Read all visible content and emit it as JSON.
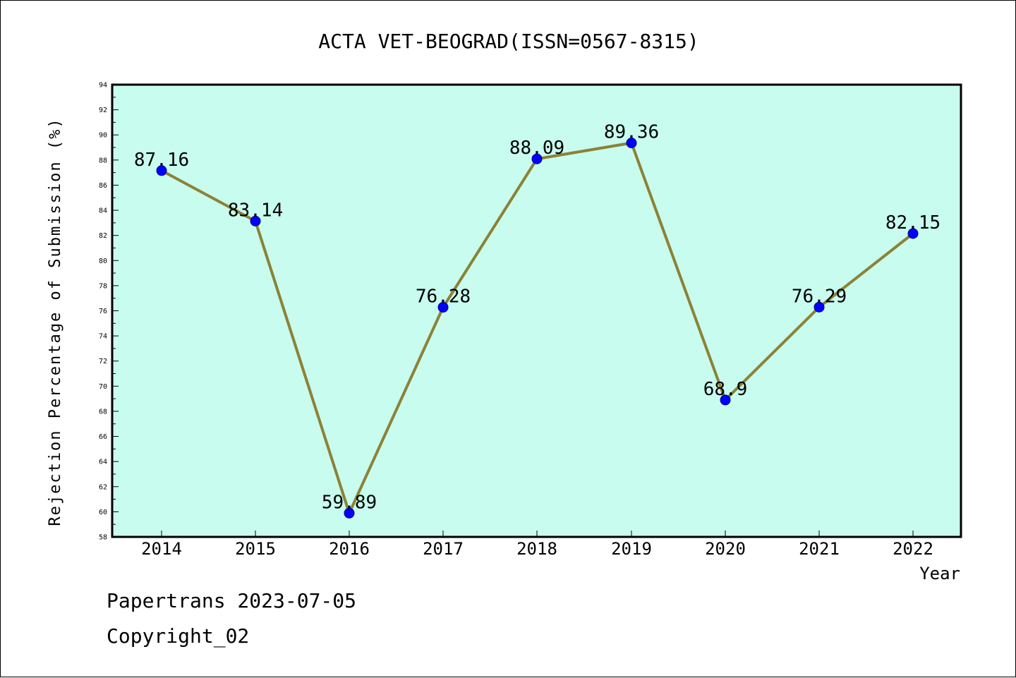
{
  "chart_data": {
    "type": "line",
    "title": "ACTA VET-BEOGRAD(ISSN=0567-8315)",
    "xlabel": "Year",
    "ylabel": "Rejection Percentage of Submission (%)",
    "x": [
      "2014",
      "2015",
      "2016",
      "2017",
      "2018",
      "2019",
      "2020",
      "2021",
      "2022"
    ],
    "values": [
      87.16,
      83.14,
      59.89,
      76.28,
      88.09,
      89.36,
      68.9,
      76.29,
      82.15
    ],
    "data_labels": [
      "87.16",
      "83.14",
      "59.89",
      "76.28",
      "88.09",
      "89.36",
      "68.9",
      "76.29",
      "82.15"
    ],
    "ylim": [
      58,
      94
    ],
    "y_ticks": [
      58,
      60,
      62,
      64,
      66,
      68,
      70,
      72,
      74,
      76,
      78,
      80,
      82,
      84,
      86,
      88,
      90,
      92,
      94
    ],
    "grid": false,
    "colors": {
      "plot_background": "#c8fcee",
      "line": "#8b8237",
      "marker": "#0000ff"
    }
  },
  "footer": {
    "line1": "Papertrans 2023-07-05",
    "line2": "Copyright_02"
  }
}
